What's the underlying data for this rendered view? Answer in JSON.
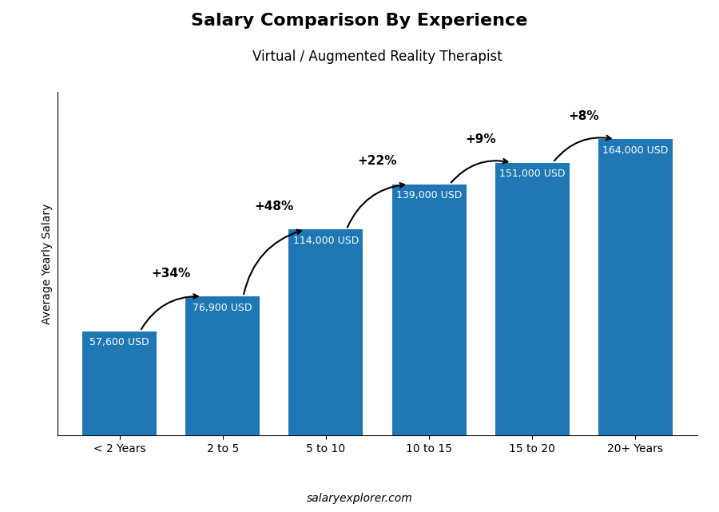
{
  "chart_data": {
    "type": "bar",
    "title": "Salary Comparison By Experience",
    "subtitle": "Virtual / Augmented Reality Therapist",
    "ylabel": "Average Yearly Salary",
    "footer": "salaryexplorer.com",
    "categories": [
      "< 2 Years",
      "2 to 5",
      "5 to 10",
      "10 to 15",
      "15 to 20",
      "20+ Years"
    ],
    "values": [
      57600,
      76900,
      114000,
      139000,
      151000,
      164000
    ],
    "value_labels": [
      "57,600 USD",
      "76,900 USD",
      "114,000 USD",
      "139,000 USD",
      "151,000 USD",
      "164,000 USD"
    ],
    "data_labels": true,
    "annotations": [
      "+34%",
      "+48%",
      "+22%",
      "+9%",
      "+8%"
    ],
    "ylim": [
      0,
      190000
    ],
    "tick_labels": "x",
    "grid": false
  }
}
